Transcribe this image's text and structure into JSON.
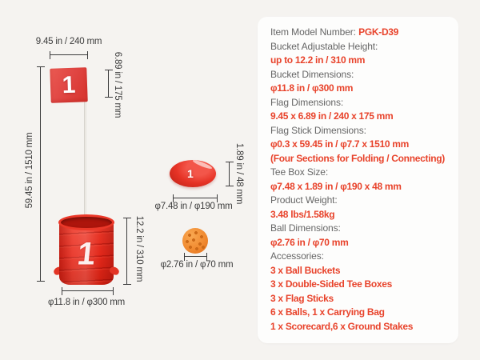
{
  "colors": {
    "page_bg": "#f5f3f0",
    "card_bg": "#fdfdfc",
    "accent_red": "#e8432b",
    "label_gray": "#666666",
    "dim_color": "#3c3c3c",
    "flag_red": "#e14744",
    "bucket_red": "#e8291b",
    "tee_red": "#e63326",
    "ball_orange": "#f0882e",
    "stick_gray": "#d9d6d0"
  },
  "diagram": {
    "flag_number": "1",
    "bucket_number": "1",
    "tee_number": "1",
    "dims": {
      "flag_width": "9.45 in / 240 mm",
      "flag_height": "6.89 in / 175 mm",
      "stick_height": "59.45 in / 1510 mm",
      "bucket_height": "12.2 in / 310 mm",
      "bucket_diameter": "φ11.8 in / φ300 mm",
      "tee_height": "1.89 in / 48 mm",
      "tee_diameter": "φ7.48 in / φ190 mm",
      "ball_diameter": "φ2.76 in / φ70 mm"
    }
  },
  "specs": {
    "lines": [
      {
        "kind": "mixed",
        "label": "Item Model Number: ",
        "value": "PGK-D39"
      },
      {
        "kind": "label",
        "text": "Bucket Adjustable Height:"
      },
      {
        "kind": "value",
        "text": "up to 12.2 in / 310 mm"
      },
      {
        "kind": "label",
        "text": "Bucket Dimensions:"
      },
      {
        "kind": "value",
        "text": "φ11.8 in / φ300 mm"
      },
      {
        "kind": "label",
        "text": "Flag Dimensions:"
      },
      {
        "kind": "value",
        "text": "9.45 x 6.89 in / 240 x 175 mm"
      },
      {
        "kind": "label",
        "text": "Flag Stick Dimensions:"
      },
      {
        "kind": "value",
        "text": "φ0.3 x 59.45 in / φ7.7 x 1510 mm"
      },
      {
        "kind": "value",
        "text": "(Four Sections for Folding / Connecting)"
      },
      {
        "kind": "label",
        "text": "Tee Box Size:"
      },
      {
        "kind": "value",
        "text": "φ7.48 x 1.89 in / φ190 x 48 mm"
      },
      {
        "kind": "label",
        "text": "Product Weight:"
      },
      {
        "kind": "value",
        "text": "3.48 lbs/1.58kg"
      },
      {
        "kind": "label",
        "text": "Ball Dimensions:"
      },
      {
        "kind": "value",
        "text": "φ2.76 in / φ70 mm"
      },
      {
        "kind": "label",
        "text": "Accessories:"
      },
      {
        "kind": "value",
        "text": "3 x Ball Buckets"
      },
      {
        "kind": "value",
        "text": "3 x Double-Sided Tee Boxes"
      },
      {
        "kind": "value",
        "text": "3 x Flag Sticks"
      },
      {
        "kind": "value",
        "text": "6 x Balls, 1 x Carrying Bag"
      },
      {
        "kind": "value",
        "text": "1 x Scorecard,6 x Ground Stakes"
      }
    ]
  }
}
